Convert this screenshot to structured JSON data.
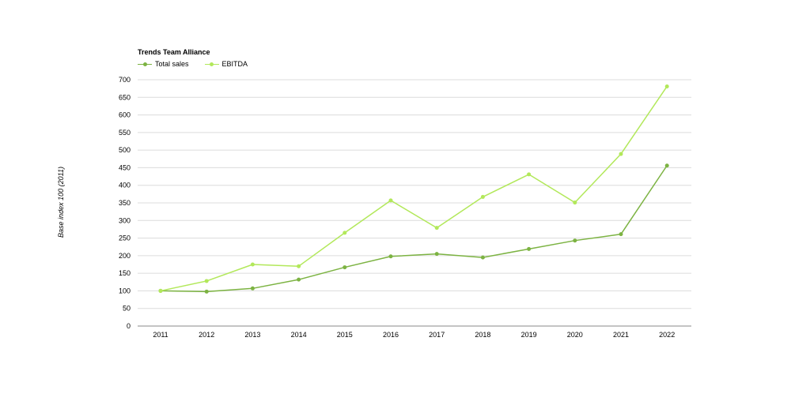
{
  "chart_data": {
    "type": "line",
    "title": "Trends Team Alliance",
    "ylabel": "Base index 100 (2011)",
    "xlabel": "",
    "categories": [
      "2011",
      "2012",
      "2013",
      "2014",
      "2015",
      "2016",
      "2017",
      "2018",
      "2019",
      "2020",
      "2021",
      "2022"
    ],
    "ylim": [
      0,
      700
    ],
    "yticks": [
      0,
      50,
      100,
      150,
      200,
      250,
      300,
      350,
      400,
      450,
      500,
      550,
      600,
      650,
      700
    ],
    "grid": true,
    "legend_position": "top-left",
    "series": [
      {
        "name": "Total sales",
        "color": "#7cb342",
        "values": [
          100,
          98,
          107,
          132,
          167,
          198,
          205,
          195,
          219,
          243,
          261,
          456
        ]
      },
      {
        "name": "EBITDA",
        "color": "#b2e85a",
        "values": [
          100,
          128,
          175,
          170,
          265,
          357,
          279,
          367,
          431,
          351,
          489,
          681
        ]
      }
    ]
  }
}
